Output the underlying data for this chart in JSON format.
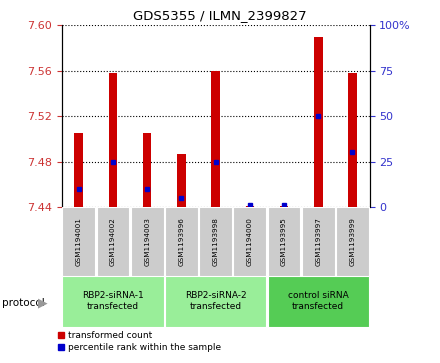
{
  "title": "GDS5355 / ILMN_2399827",
  "samples": [
    "GSM1194001",
    "GSM1194002",
    "GSM1194003",
    "GSM1193996",
    "GSM1193998",
    "GSM1194000",
    "GSM1193995",
    "GSM1193997",
    "GSM1193999"
  ],
  "red_values": [
    7.505,
    7.558,
    7.505,
    7.487,
    7.56,
    7.441,
    7.441,
    7.59,
    7.558
  ],
  "blue_values_pct": [
    10,
    25,
    10,
    5,
    25,
    1,
    1,
    50,
    30
  ],
  "y_min": 7.44,
  "y_max": 7.6,
  "y_ticks": [
    7.44,
    7.48,
    7.52,
    7.56,
    7.6
  ],
  "right_y_ticks": [
    0,
    25,
    50,
    75,
    100
  ],
  "groups": [
    {
      "label": "RBP2-siRNA-1\ntransfected",
      "start": 0,
      "end": 3
    },
    {
      "label": "RBP2-siRNA-2\ntransfected",
      "start": 3,
      "end": 6
    },
    {
      "label": "control siRNA\ntransfected",
      "start": 6,
      "end": 9
    }
  ],
  "bar_color": "#cc0000",
  "blue_color": "#0000cc",
  "left_tick_color": "#cc3333",
  "right_tick_color": "#3333cc",
  "bar_width": 0.25,
  "baseline": 7.44,
  "group_color_light": "#99ee99",
  "group_color_dark": "#55cc55",
  "sample_box_color": "#cccccc"
}
